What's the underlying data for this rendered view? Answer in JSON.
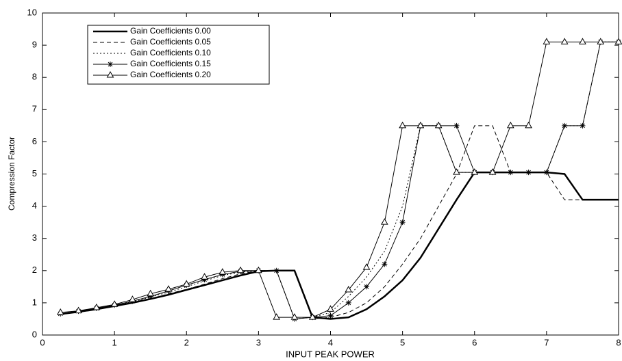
{
  "chart_data": {
    "type": "line",
    "xlabel": "INPUT PEAK POWER",
    "ylabel": "Compression Factor",
    "x": [
      0.25,
      0.5,
      0.75,
      1,
      1.25,
      1.5,
      1.75,
      2,
      2.25,
      2.5,
      2.75,
      3,
      3.25,
      3.5,
      3.75,
      4,
      4.25,
      4.5,
      4.75,
      5,
      5.25,
      5.5,
      5.75,
      6,
      6.25,
      6.5,
      6.75,
      7,
      7.25,
      7.5,
      7.75,
      8
    ],
    "xlim": [
      0,
      8
    ],
    "xticks": [
      0,
      1,
      2,
      3,
      4,
      5,
      6,
      7,
      8
    ],
    "ylim": [
      0,
      10
    ],
    "yticks": [
      0,
      1,
      2,
      3,
      4,
      5,
      6,
      7,
      8,
      9,
      10
    ],
    "legend": "upper left",
    "series": [
      {
        "name": "Gain Coefficients 0.00",
        "color": "#000000",
        "line_width": 2.5,
        "line_style": "solid",
        "marker": "none",
        "values": [
          0.65,
          0.72,
          0.8,
          0.9,
          1.0,
          1.12,
          1.25,
          1.4,
          1.55,
          1.7,
          1.85,
          1.98,
          2.0,
          2.0,
          0.55,
          0.5,
          0.55,
          0.8,
          1.2,
          1.7,
          2.4,
          3.3,
          4.2,
          5.05,
          5.05,
          5.05,
          5.05,
          5.05,
          5.0,
          4.2,
          4.2,
          4.2
        ]
      },
      {
        "name": "Gain Coefficients 0.05",
        "color": "#000000",
        "line_width": 1,
        "line_style": "dashed",
        "marker": "none",
        "values": [
          0.65,
          0.72,
          0.8,
          0.9,
          1.0,
          1.12,
          1.28,
          1.42,
          1.58,
          1.75,
          1.9,
          2.0,
          2.0,
          2.0,
          0.5,
          0.55,
          0.7,
          1.0,
          1.5,
          2.2,
          3.0,
          4.0,
          5.0,
          6.5,
          6.5,
          5.05,
          5.05,
          5.05,
          4.2,
          4.2,
          4.2,
          4.2
        ]
      },
      {
        "name": "Gain Coefficients 0.10",
        "color": "#000000",
        "line_width": 1,
        "line_style": "dotted",
        "marker": "none",
        "values": [
          0.66,
          0.73,
          0.82,
          0.92,
          1.03,
          1.18,
          1.33,
          1.5,
          1.68,
          1.85,
          1.95,
          2.0,
          2.0,
          0.5,
          0.55,
          0.7,
          1.2,
          1.8,
          2.6,
          4.0,
          6.5,
          6.5,
          5.05,
          5.05,
          5.05,
          5.05,
          5.05,
          5.05,
          6.5,
          6.5,
          9.1,
          9.1
        ]
      },
      {
        "name": "Gain Coefficients 0.15",
        "color": "#000000",
        "line_width": 1,
        "line_style": "solid",
        "marker": "star",
        "values": [
          0.66,
          0.74,
          0.83,
          0.93,
          1.05,
          1.2,
          1.37,
          1.55,
          1.72,
          1.88,
          1.98,
          2.0,
          2.0,
          0.5,
          0.55,
          0.6,
          1.0,
          1.5,
          2.2,
          3.5,
          6.5,
          6.5,
          6.5,
          5.05,
          5.05,
          5.05,
          5.05,
          5.05,
          6.5,
          6.5,
          9.1,
          9.1
        ]
      },
      {
        "name": "Gain Coefficients 0.20",
        "color": "#000000",
        "line_width": 1,
        "line_style": "solid",
        "marker": "triangle",
        "values": [
          0.7,
          0.75,
          0.85,
          0.95,
          1.1,
          1.28,
          1.42,
          1.58,
          1.8,
          1.95,
          2.0,
          2.0,
          0.55,
          0.55,
          0.55,
          0.8,
          1.4,
          2.1,
          3.5,
          6.5,
          6.5,
          6.5,
          5.05,
          5.05,
          5.05,
          6.5,
          6.5,
          9.1,
          9.1,
          9.1,
          9.1,
          9.1
        ]
      }
    ]
  }
}
